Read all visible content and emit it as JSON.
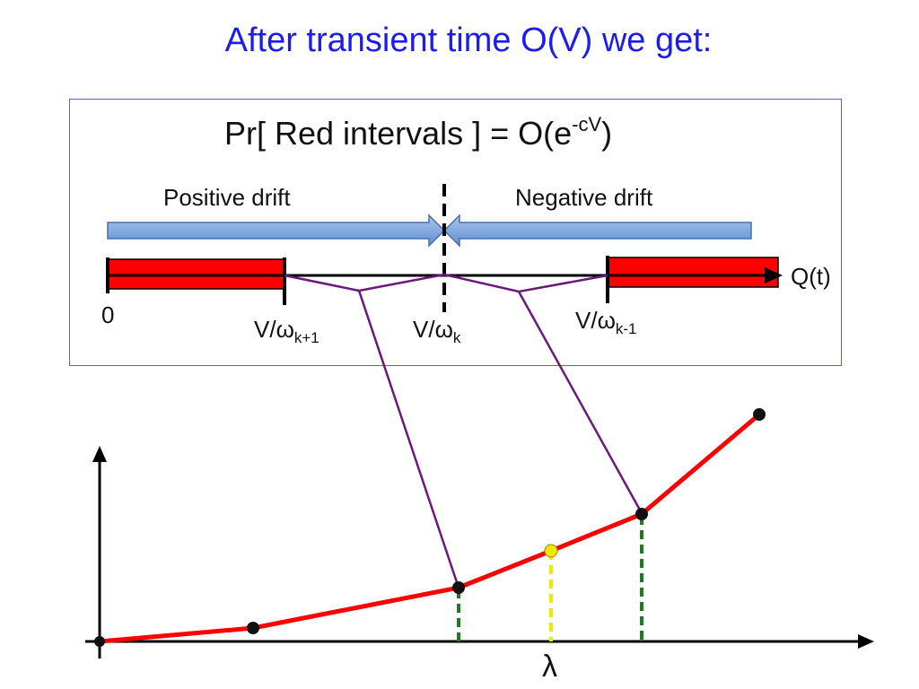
{
  "title": "After transient time O(V) we get:",
  "formula": {
    "text": "Pr[ Red intervals ] = O(e",
    "exp": "-cV",
    "close": ")"
  },
  "drift": {
    "positive": "Positive drift",
    "negative": "Negative drift"
  },
  "axis_labels": {
    "q": "Q(t)",
    "zero": "0",
    "k_plus_1": {
      "base": "V/ω",
      "sub": "k+1"
    },
    "k": {
      "base": "V/ω",
      "sub": "k"
    },
    "k_minus_1": {
      "base": "V/ω",
      "sub": "k-1"
    },
    "lambda": "λ"
  },
  "colors": {
    "title": "#1c1cf0",
    "red_interval": "#ff0000",
    "drift_arrow": "#7aa6dd",
    "connector": "#6a1a7a",
    "dashed_green": "#1e7d1e",
    "dashed_yellow": "#f0e800",
    "curve": "#ff0000"
  }
}
